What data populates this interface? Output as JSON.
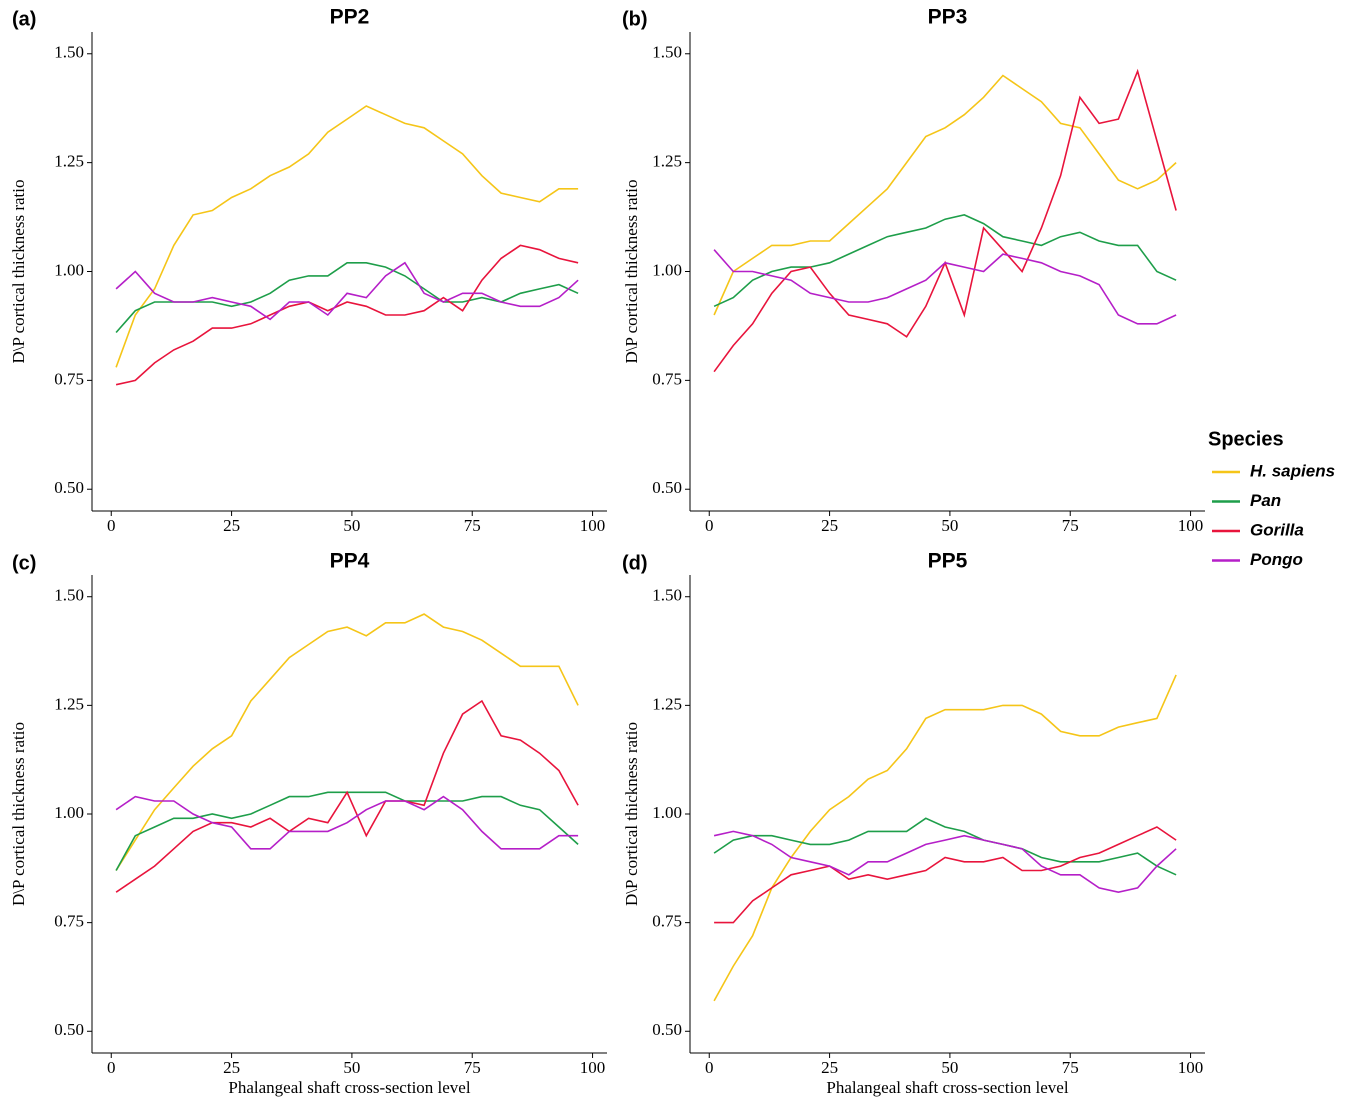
{
  "chart_data": [
    {
      "type": "line",
      "panel_label": "(a)",
      "title": "PP2",
      "ylabel": "D\\P cortical thickness ratio",
      "legend_title": "Species",
      "legend": "right",
      "x": [
        1,
        5,
        9,
        13,
        17,
        21,
        25,
        29,
        33,
        37,
        41,
        45,
        49,
        53,
        57,
        61,
        65,
        69,
        73,
        77,
        81,
        85,
        89,
        93,
        97
      ],
      "xlim": [
        -4,
        103
      ],
      "ylim": [
        0.45,
        1.55
      ],
      "xticks": [
        0,
        25,
        50,
        75,
        100
      ],
      "yticks": [
        {
          "value": 0.5,
          "label": "0.50"
        },
        {
          "value": 0.75,
          "label": "0.75"
        },
        {
          "value": 1,
          "label": "1.00"
        },
        {
          "value": 1.25,
          "label": "1.25"
        },
        {
          "value": 1.5,
          "label": "1.50"
        }
      ],
      "series": [
        {
          "name": "H. sapiens",
          "color": "#f5c518",
          "values": [
            0.78,
            0.9,
            0.96,
            1.06,
            1.13,
            1.14,
            1.17,
            1.19,
            1.22,
            1.24,
            1.27,
            1.32,
            1.35,
            1.38,
            1.36,
            1.34,
            1.33,
            1.3,
            1.27,
            1.22,
            1.18,
            1.17,
            1.16,
            1.19,
            1.19
          ]
        },
        {
          "name": "Pan",
          "color": "#1e9e4a",
          "values": [
            0.86,
            0.91,
            0.93,
            0.93,
            0.93,
            0.93,
            0.92,
            0.93,
            0.95,
            0.98,
            0.99,
            0.99,
            1.02,
            1.02,
            1.01,
            0.99,
            0.96,
            0.93,
            0.93,
            0.94,
            0.93,
            0.95,
            0.96,
            0.97,
            0.95
          ]
        },
        {
          "name": "Gorilla",
          "color": "#e8143c",
          "values": [
            0.74,
            0.75,
            0.79,
            0.82,
            0.84,
            0.87,
            0.87,
            0.88,
            0.9,
            0.92,
            0.93,
            0.91,
            0.93,
            0.92,
            0.9,
            0.9,
            0.91,
            0.94,
            0.91,
            0.98,
            1.03,
            1.06,
            1.05,
            1.03,
            1.02
          ]
        },
        {
          "name": "Pongo",
          "color": "#b51fc8",
          "values": [
            0.96,
            1.0,
            0.95,
            0.93,
            0.93,
            0.94,
            0.93,
            0.92,
            0.89,
            0.93,
            0.93,
            0.9,
            0.95,
            0.94,
            0.99,
            1.02,
            0.95,
            0.93,
            0.95,
            0.95,
            0.93,
            0.92,
            0.92,
            0.94,
            0.98
          ]
        }
      ]
    },
    {
      "type": "line",
      "panel_label": "(b)",
      "title": "PP3",
      "ylabel": "D\\P cortical thickness ratio",
      "x": [
        1,
        5,
        9,
        13,
        17,
        21,
        25,
        29,
        33,
        37,
        41,
        45,
        49,
        53,
        57,
        61,
        65,
        69,
        73,
        77,
        81,
        85,
        89,
        93,
        97
      ],
      "xlim": [
        -4,
        103
      ],
      "ylim": [
        0.45,
        1.55
      ],
      "xticks": [
        0,
        25,
        50,
        75,
        100
      ],
      "yticks": [
        {
          "value": 0.5,
          "label": "0.50"
        },
        {
          "value": 0.75,
          "label": "0.75"
        },
        {
          "value": 1,
          "label": "1.00"
        },
        {
          "value": 1.25,
          "label": "1.25"
        },
        {
          "value": 1.5,
          "label": "1.50"
        }
      ],
      "series": [
        {
          "name": "H. sapiens",
          "color": "#f5c518",
          "values": [
            0.9,
            1.0,
            1.03,
            1.06,
            1.06,
            1.07,
            1.07,
            1.11,
            1.15,
            1.19,
            1.25,
            1.31,
            1.33,
            1.36,
            1.4,
            1.45,
            1.42,
            1.39,
            1.34,
            1.33,
            1.27,
            1.21,
            1.19,
            1.21,
            1.25
          ]
        },
        {
          "name": "Pan",
          "color": "#1e9e4a",
          "values": [
            0.92,
            0.94,
            0.98,
            1.0,
            1.01,
            1.01,
            1.02,
            1.04,
            1.06,
            1.08,
            1.09,
            1.1,
            1.12,
            1.13,
            1.11,
            1.08,
            1.07,
            1.06,
            1.08,
            1.09,
            1.07,
            1.06,
            1.06,
            1.0,
            0.98
          ]
        },
        {
          "name": "Gorilla",
          "color": "#e8143c",
          "values": [
            0.77,
            0.83,
            0.88,
            0.95,
            1.0,
            1.01,
            0.95,
            0.9,
            0.89,
            0.88,
            0.85,
            0.92,
            1.02,
            0.9,
            1.1,
            1.05,
            1.0,
            1.1,
            1.22,
            1.4,
            1.34,
            1.35,
            1.46,
            1.3,
            1.14
          ]
        },
        {
          "name": "Pongo",
          "color": "#b51fc8",
          "values": [
            1.05,
            1.0,
            1.0,
            0.99,
            0.98,
            0.95,
            0.94,
            0.93,
            0.93,
            0.94,
            0.96,
            0.98,
            1.02,
            1.01,
            1.0,
            1.04,
            1.03,
            1.02,
            1.0,
            0.99,
            0.97,
            0.9,
            0.88,
            0.88,
            0.9
          ]
        }
      ]
    },
    {
      "type": "line",
      "panel_label": "(c)",
      "title": "PP4",
      "ylabel": "D\\P cortical thickness ratio",
      "xlabel": "Phalangeal shaft cross-section level",
      "x": [
        1,
        5,
        9,
        13,
        17,
        21,
        25,
        29,
        33,
        37,
        41,
        45,
        49,
        53,
        57,
        61,
        65,
        69,
        73,
        77,
        81,
        85,
        89,
        93,
        97
      ],
      "xlim": [
        -4,
        103
      ],
      "ylim": [
        0.45,
        1.55
      ],
      "xticks": [
        0,
        25,
        50,
        75,
        100
      ],
      "yticks": [
        {
          "value": 0.5,
          "label": "0.50"
        },
        {
          "value": 0.75,
          "label": "0.75"
        },
        {
          "value": 1,
          "label": "1.00"
        },
        {
          "value": 1.25,
          "label": "1.25"
        },
        {
          "value": 1.5,
          "label": "1.50"
        }
      ],
      "series": [
        {
          "name": "H. sapiens",
          "color": "#f5c518",
          "values": [
            0.87,
            0.94,
            1.01,
            1.06,
            1.11,
            1.15,
            1.18,
            1.26,
            1.31,
            1.36,
            1.39,
            1.42,
            1.43,
            1.41,
            1.44,
            1.44,
            1.46,
            1.43,
            1.42,
            1.4,
            1.37,
            1.34,
            1.34,
            1.34,
            1.25
          ]
        },
        {
          "name": "Pan",
          "color": "#1e9e4a",
          "values": [
            0.87,
            0.95,
            0.97,
            0.99,
            0.99,
            1.0,
            0.99,
            1.0,
            1.02,
            1.04,
            1.04,
            1.05,
            1.05,
            1.05,
            1.05,
            1.03,
            1.03,
            1.03,
            1.03,
            1.04,
            1.04,
            1.02,
            1.01,
            0.97,
            0.93
          ]
        },
        {
          "name": "Gorilla",
          "color": "#e8143c",
          "values": [
            0.82,
            0.85,
            0.88,
            0.92,
            0.96,
            0.98,
            0.98,
            0.97,
            0.99,
            0.96,
            0.99,
            0.98,
            1.05,
            0.95,
            1.03,
            1.03,
            1.02,
            1.14,
            1.23,
            1.26,
            1.18,
            1.17,
            1.14,
            1.1,
            1.02
          ]
        },
        {
          "name": "Pongo",
          "color": "#b51fc8",
          "values": [
            1.01,
            1.04,
            1.03,
            1.03,
            1.0,
            0.98,
            0.97,
            0.92,
            0.92,
            0.96,
            0.96,
            0.96,
            0.98,
            1.01,
            1.03,
            1.03,
            1.01,
            1.04,
            1.01,
            0.96,
            0.92,
            0.92,
            0.92,
            0.95,
            0.95
          ]
        }
      ]
    },
    {
      "type": "line",
      "panel_label": "(d)",
      "title": "PP5",
      "ylabel": "D\\P cortical thickness ratio",
      "xlabel": "Phalangeal shaft cross-section level",
      "x": [
        1,
        5,
        9,
        13,
        17,
        21,
        25,
        29,
        33,
        37,
        41,
        45,
        49,
        53,
        57,
        61,
        65,
        69,
        73,
        77,
        81,
        85,
        89,
        93,
        97
      ],
      "xlim": [
        -4,
        103
      ],
      "ylim": [
        0.45,
        1.55
      ],
      "xticks": [
        0,
        25,
        50,
        75,
        100
      ],
      "yticks": [
        {
          "value": 0.5,
          "label": "0.50"
        },
        {
          "value": 0.75,
          "label": "0.75"
        },
        {
          "value": 1,
          "label": "1.00"
        },
        {
          "value": 1.25,
          "label": "1.25"
        },
        {
          "value": 1.5,
          "label": "1.50"
        }
      ],
      "series": [
        {
          "name": "H. sapiens",
          "color": "#f5c518",
          "values": [
            0.57,
            0.65,
            0.72,
            0.83,
            0.9,
            0.96,
            1.01,
            1.04,
            1.08,
            1.1,
            1.15,
            1.22,
            1.24,
            1.24,
            1.24,
            1.25,
            1.25,
            1.23,
            1.19,
            1.18,
            1.18,
            1.2,
            1.21,
            1.22,
            1.32
          ]
        },
        {
          "name": "Pan",
          "color": "#1e9e4a",
          "values": [
            0.91,
            0.94,
            0.95,
            0.95,
            0.94,
            0.93,
            0.93,
            0.94,
            0.96,
            0.96,
            0.96,
            0.99,
            0.97,
            0.96,
            0.94,
            0.93,
            0.92,
            0.9,
            0.89,
            0.89,
            0.89,
            0.9,
            0.91,
            0.88,
            0.86
          ]
        },
        {
          "name": "Gorilla",
          "color": "#e8143c",
          "values": [
            0.75,
            0.75,
            0.8,
            0.83,
            0.86,
            0.87,
            0.88,
            0.85,
            0.86,
            0.85,
            0.86,
            0.87,
            0.9,
            0.89,
            0.89,
            0.9,
            0.87,
            0.87,
            0.88,
            0.9,
            0.91,
            0.93,
            0.95,
            0.97,
            0.94
          ]
        },
        {
          "name": "Pongo",
          "color": "#b51fc8",
          "values": [
            0.95,
            0.96,
            0.95,
            0.93,
            0.9,
            0.89,
            0.88,
            0.86,
            0.89,
            0.89,
            0.91,
            0.93,
            0.94,
            0.95,
            0.94,
            0.93,
            0.92,
            0.88,
            0.86,
            0.86,
            0.83,
            0.82,
            0.83,
            0.88,
            0.92
          ]
        }
      ]
    }
  ]
}
